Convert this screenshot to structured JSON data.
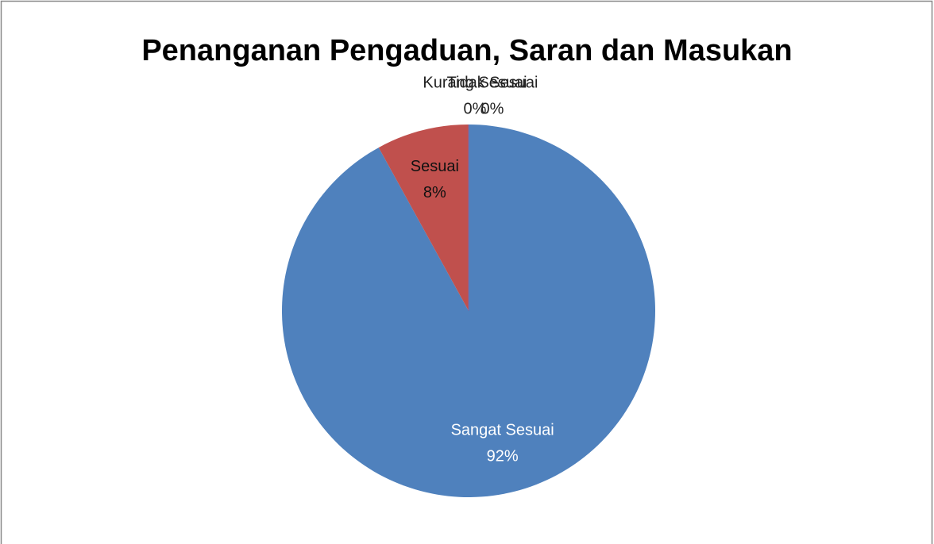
{
  "chart_data": {
    "type": "pie",
    "title": "Penanganan Pengaduan, Saran dan Masukan",
    "categories": [
      "Sangat Sesuai",
      "Sesuai",
      "Kurang Sesuai",
      "Tidak Sesuai"
    ],
    "values": [
      92,
      8,
      0,
      0
    ],
    "value_labels": [
      "92%",
      "8%",
      "0%",
      "0%"
    ],
    "colors": [
      "#4f81bd",
      "#c0504d",
      "#9bbb59",
      "#8064a2"
    ]
  }
}
